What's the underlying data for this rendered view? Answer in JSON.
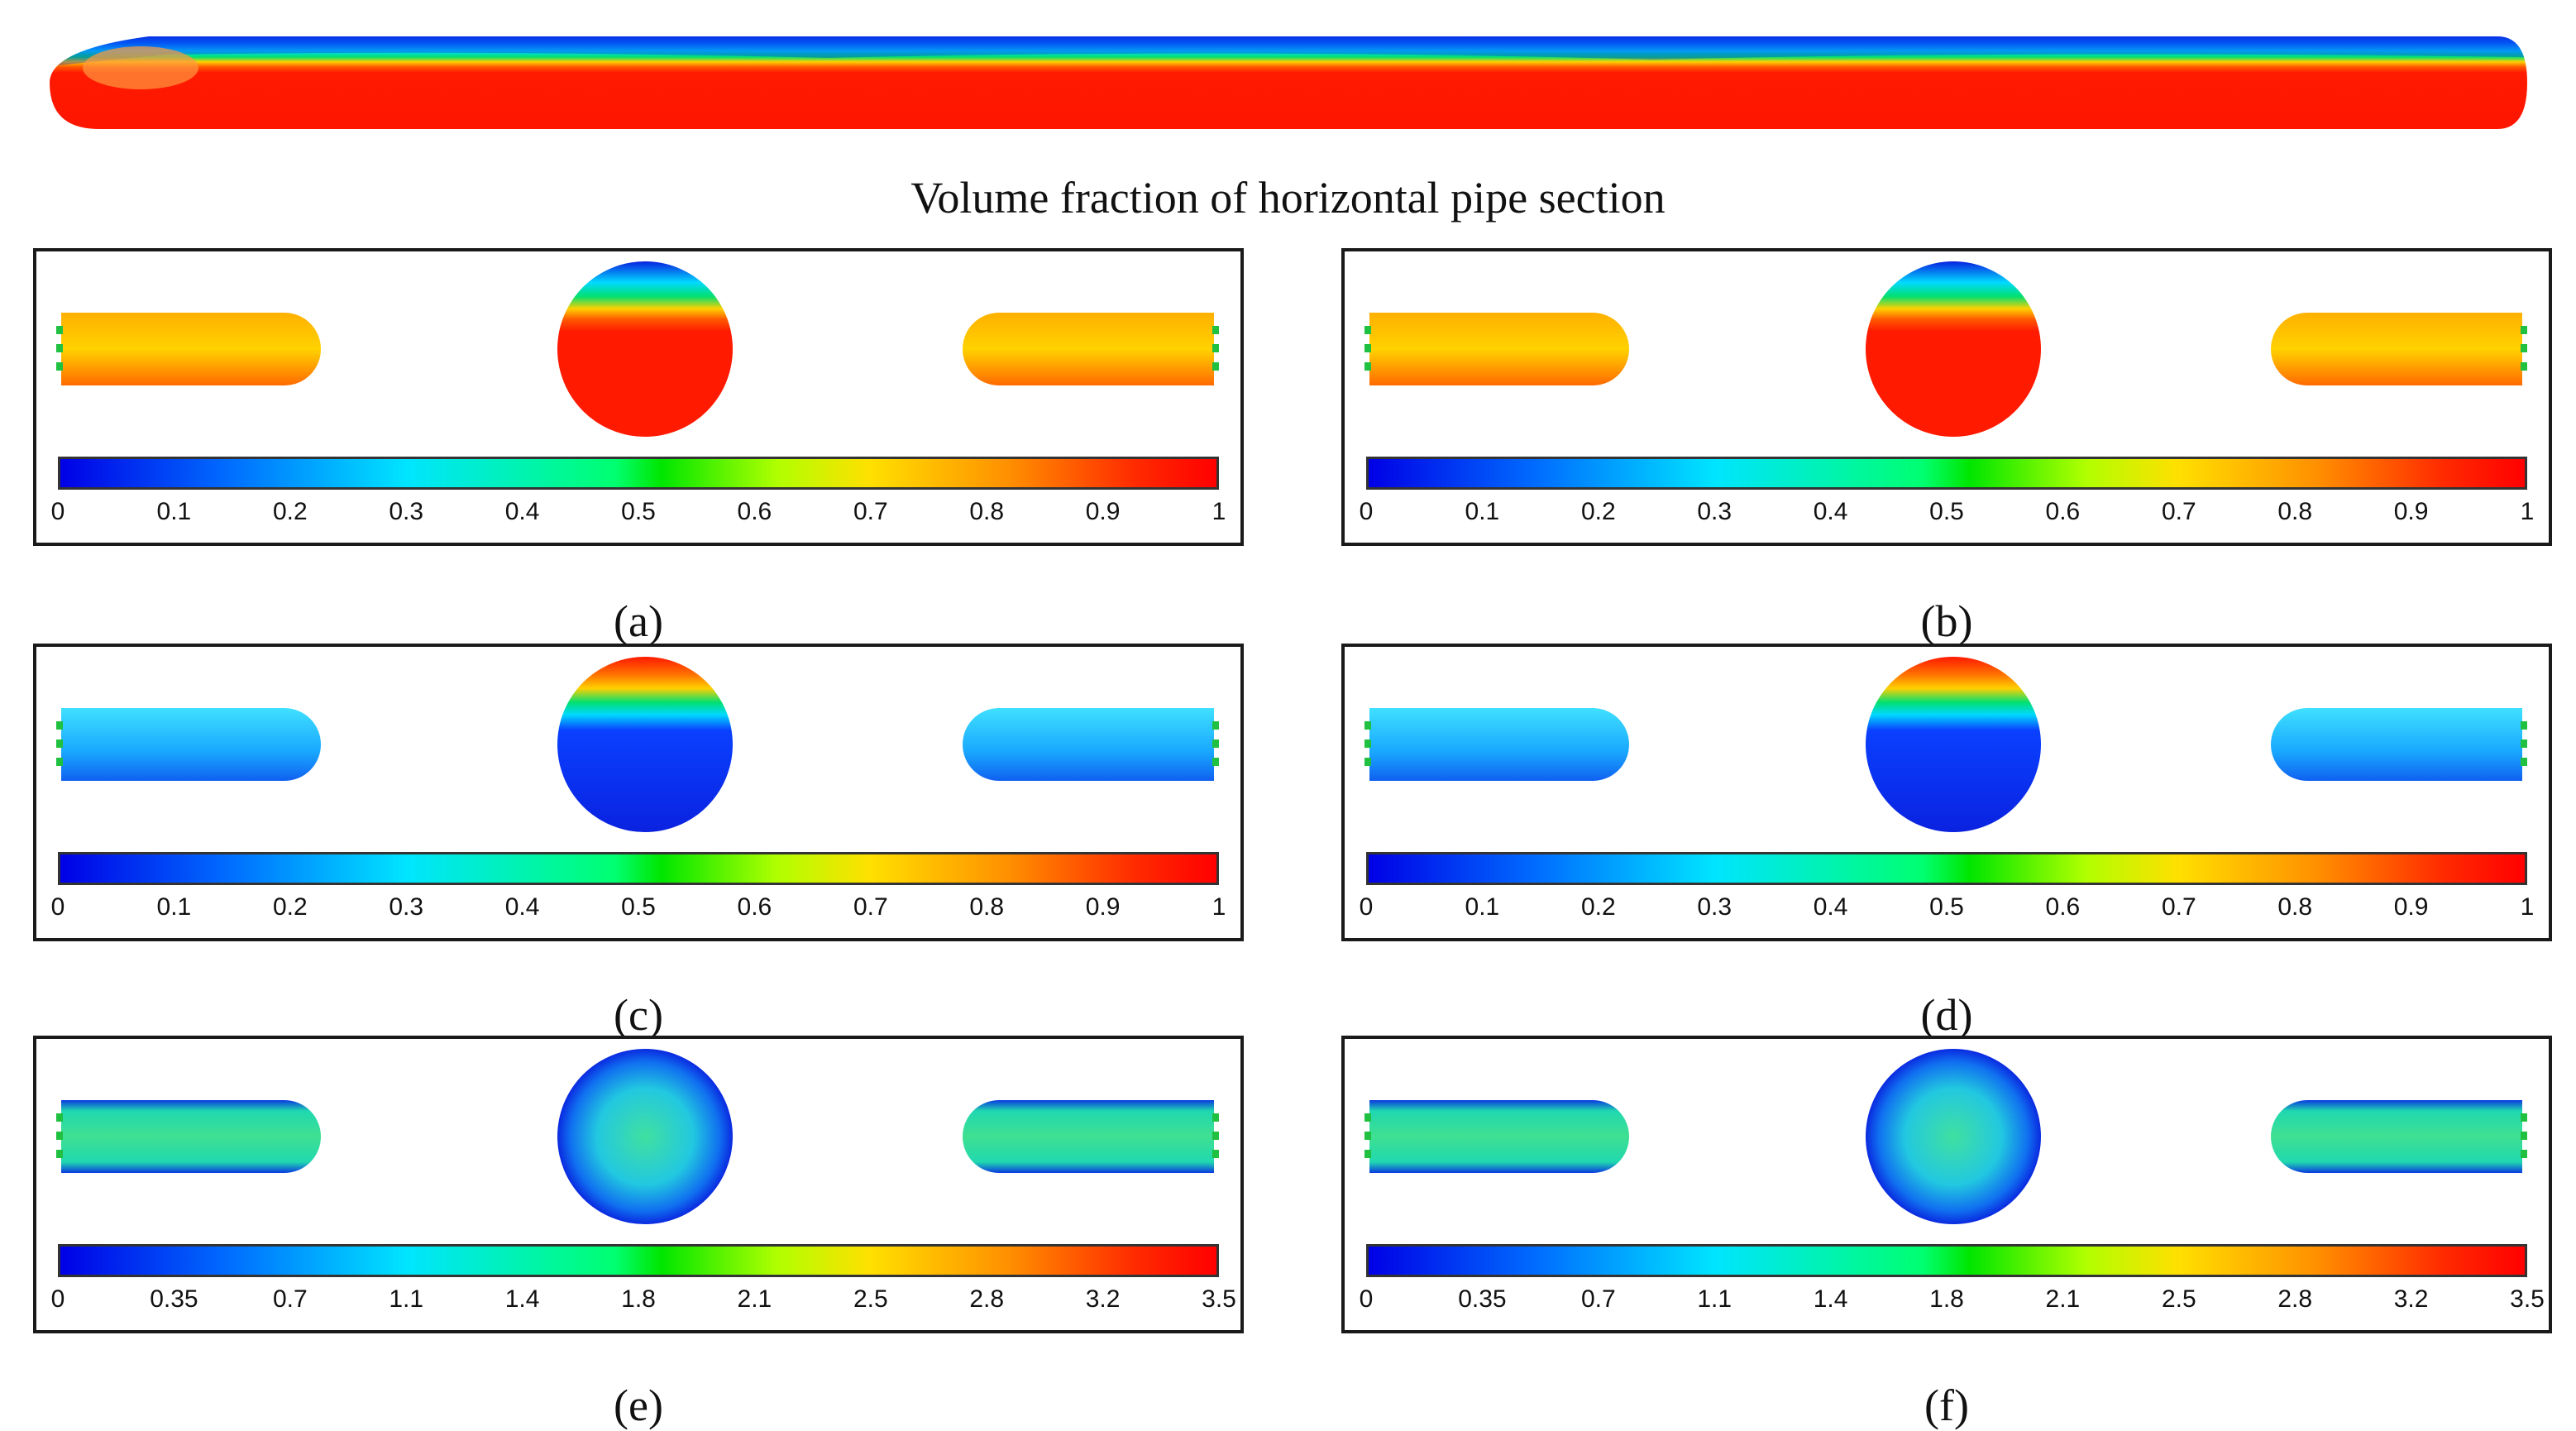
{
  "title": "Volume fraction of horizontal pipe section",
  "colors": {
    "red": "#ff1a00",
    "blue": "#0a22e0",
    "cyan": "#00d9ff",
    "green": "#00e070",
    "yellow": "#ffd000"
  },
  "panels": [
    {
      "id": "a",
      "caption": "(a)",
      "ticks": [
        "0",
        "0.1",
        "0.2",
        "0.3",
        "0.4",
        "0.5",
        "0.6",
        "0.7",
        "0.8",
        "0.9",
        "1"
      ],
      "scheme": "water-high"
    },
    {
      "id": "b",
      "caption": "(b)",
      "ticks": [
        "0",
        "0.1",
        "0.2",
        "0.3",
        "0.4",
        "0.5",
        "0.6",
        "0.7",
        "0.8",
        "0.9",
        "1"
      ],
      "scheme": "water-high"
    },
    {
      "id": "c",
      "caption": "(c)",
      "ticks": [
        "0",
        "0.1",
        "0.2",
        "0.3",
        "0.4",
        "0.5",
        "0.6",
        "0.7",
        "0.8",
        "0.9",
        "1"
      ],
      "scheme": "air-low"
    },
    {
      "id": "d",
      "caption": "(d)",
      "ticks": [
        "0",
        "0.1",
        "0.2",
        "0.3",
        "0.4",
        "0.5",
        "0.6",
        "0.7",
        "0.8",
        "0.9",
        "1"
      ],
      "scheme": "air-low"
    },
    {
      "id": "e",
      "caption": "(e)",
      "ticks": [
        "0",
        "0.35",
        "0.7",
        "1.1",
        "1.4",
        "1.8",
        "2.1",
        "2.5",
        "2.8",
        "3.2",
        "3.5"
      ],
      "scheme": "velocity"
    },
    {
      "id": "f",
      "caption": "(f)",
      "ticks": [
        "0",
        "0.35",
        "0.7",
        "1.1",
        "1.4",
        "1.8",
        "2.1",
        "2.5",
        "2.8",
        "3.2",
        "3.5"
      ],
      "scheme": "velocity"
    }
  ]
}
